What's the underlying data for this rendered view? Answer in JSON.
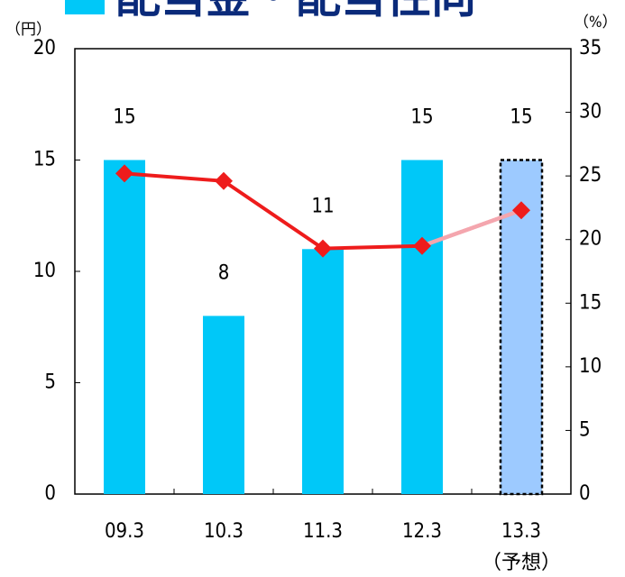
{
  "chart_data": {
    "type": "bar",
    "title": "配当金・配当性向",
    "categories": [
      "09.3",
      "10.3",
      "11.3",
      "12.3",
      "13.3"
    ],
    "category_notes": [
      null,
      null,
      null,
      null,
      "（予想）"
    ],
    "y_label": "（円）",
    "y2_label": "（%）",
    "ylim": [
      0,
      20
    ],
    "yticks": [
      0,
      5,
      10,
      15,
      20
    ],
    "y2lim": [
      0,
      35
    ],
    "y2ticks": [
      0,
      5,
      10,
      15,
      20,
      25,
      30,
      35
    ],
    "series": [
      {
        "type": "bar",
        "color": "#00c8f8",
        "forecast_color": "#9dcaff",
        "values": [
          15,
          8,
          11,
          15,
          15
        ]
      },
      {
        "type": "line",
        "axis": "y2",
        "color": "#ee1c1c",
        "forecast_color": "#f4a6ae",
        "values": [
          25.2,
          24.6,
          19.3,
          19.5,
          22.3
        ]
      }
    ]
  }
}
